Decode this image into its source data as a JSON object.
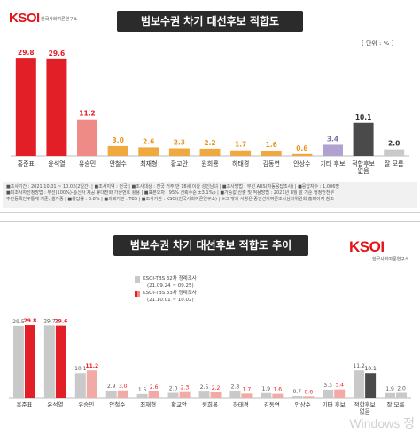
{
  "panel1": {
    "logo": "KSOI",
    "logo_sub": "한국사회여론연구소",
    "title": "범보수권 차기 대선후보 적합도",
    "unit": "[ 단위 : % ]",
    "method_lines": [
      "■조사기간 : 2021.10.01 ~ 10.02(2일간) | ■조사지역 : 전국 | ■조사대상 : 전국 거주 만 18세 이상 성인남녀 | ■조사방법 : 무선 ARS(자동응답조사) | ■응답자수 : 1,006명",
      "■피조사자선정방법 : 무선(100%)-통신사 제공 휴대전화 가상번호 활용 | ■표본오차 : 95% 신뢰수준 ±3.1%p | ■가중값 산출 및 적용방법 : 2021년 8월 말 기준 행정안전부",
      "주민등록인구통계 기준, 셀가중 | ■응답률 : 6.8% | ■의뢰기관 : TBS | ■조사기관 : KSOI(한국사회여론연구소) | ※그 밖의 사항은 중앙선거여론조사심의위원회 홈페이지 참조"
    ]
  },
  "panel2": {
    "logo": "KSOI",
    "logo_sub": "한국사회여론연구소",
    "title": "범보수권 차기 대선후보 적합도 추이",
    "watermark": "Windows 정"
  },
  "colors": {
    "red": "#e21f26",
    "pink": "#ef8b86",
    "light_red": "#f2aaa6",
    "orange": "#f0a93e",
    "purple": "#b0a1ce",
    "dark_gray": "#4a4a4a",
    "light_gray": "#c9c9c9",
    "red_text": "#e21f26",
    "orange_text": "#e8951f",
    "purple_text": "#7e6bb0",
    "dark_text": "#333333"
  },
  "chart_data": [
    {
      "type": "bar",
      "categories": [
        "홍준표",
        "윤석열",
        "유승민",
        "안철수",
        "최재형",
        "황교안",
        "원희룡",
        "하태경",
        "김동연",
        "안상수",
        "기타 후보",
        "적합후보\n없음",
        "잘 모름"
      ],
      "values": [
        29.8,
        29.6,
        11.2,
        3.0,
        2.6,
        2.3,
        2.2,
        1.7,
        1.6,
        0.6,
        3.4,
        10.1,
        2.0
      ],
      "value_labels": [
        "29.8",
        "29.6",
        "11.2",
        "3.0",
        "2.6",
        "2.3",
        "2.2",
        "1.7",
        "1.6",
        "0.6",
        "3.4",
        "10.1",
        "2.0"
      ],
      "ylim": [
        0,
        32
      ]
    },
    {
      "type": "bar",
      "categories": [
        "홍준표",
        "윤석열",
        "유승민",
        "안철수",
        "최재형",
        "황교안",
        "원희룡",
        "하태경",
        "김동연",
        "안상수",
        "기타 후보",
        "적합후보\n없음",
        "잘 모름"
      ],
      "series": [
        {
          "name": "KSOI-TBS 32차 정례조사",
          "period": "(21.09.24 ~ 09.25)",
          "values": [
            29.5,
            29.7,
            10.1,
            2.9,
            1.5,
            2.0,
            2.5,
            2.8,
            1.9,
            0.7,
            3.3,
            11.2,
            1.9
          ]
        },
        {
          "name": "KSOI-TBS 33차 정례조사",
          "period": "(21.10.01 ~ 10.02)",
          "values": [
            29.8,
            29.6,
            11.2,
            3.0,
            2.6,
            2.3,
            2.2,
            1.7,
            1.6,
            0.6,
            3.4,
            10.1,
            2.0
          ]
        }
      ],
      "series_value_labels": [
        [
          "29.5",
          "29.7",
          "10.1",
          "2.9",
          "1.5",
          "2.0",
          "2.5",
          "2.8",
          "1.9",
          "0.7",
          "3.3",
          "11.2",
          "1.9"
        ],
        [
          "29.8",
          "29.6",
          "11.2",
          "3.0",
          "2.6",
          "2.3",
          "2.2",
          "1.7",
          "1.6",
          "0.6",
          "3.4",
          "10.1",
          "2.0"
        ]
      ],
      "legend_position": "top-left",
      "ylim": [
        0,
        32
      ]
    }
  ]
}
